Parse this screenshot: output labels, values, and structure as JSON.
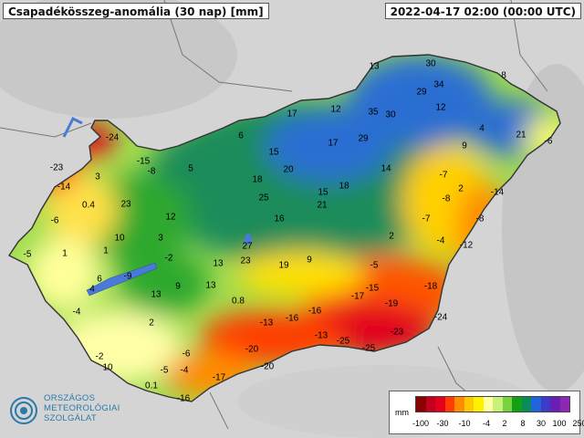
{
  "title": "Csapadékösszeg-anomália (30 nap) [mm]",
  "timestamp": "2022-04-17 02:00 (00:00 UTC)",
  "logo": {
    "line1": "ORSZÁGOS",
    "line2": "METEOROLÓGIAI",
    "line3": "SZOLGÁLAT"
  },
  "legend": {
    "unit": "mm",
    "colors": [
      "#8b0000",
      "#c4001e",
      "#e2001a",
      "#ff3c00",
      "#ff8c00",
      "#ffc800",
      "#fff200",
      "#ffffa0",
      "#c8f07a",
      "#78d23c",
      "#14a014",
      "#0a8c5a",
      "#1e64dc",
      "#3c3cc8",
      "#6a1eb4",
      "#8c28b4"
    ],
    "ticks": [
      "-100",
      "-30",
      "-10",
      "-4",
      "2",
      "8",
      "30",
      "100",
      "250"
    ]
  },
  "values": [
    {
      "v": "13"
    },
    {
      "v": "30"
    },
    {
      "v": "8"
    },
    {
      "v": "29"
    },
    {
      "v": "34"
    },
    {
      "v": "12"
    },
    {
      "v": "35"
    },
    {
      "v": "30"
    },
    {
      "v": "17"
    },
    {
      "v": "12"
    },
    {
      "v": "4"
    },
    {
      "v": "21"
    },
    {
      "v": "-6"
    },
    {
      "v": "9"
    },
    {
      "v": "-24"
    },
    {
      "v": "6"
    },
    {
      "v": "15"
    },
    {
      "v": "17"
    },
    {
      "v": "29"
    },
    {
      "v": "-23"
    },
    {
      "v": "-15"
    },
    {
      "v": "-8"
    },
    {
      "v": "5"
    },
    {
      "v": "20"
    },
    {
      "v": "14"
    },
    {
      "v": "-7"
    },
    {
      "v": "3"
    },
    {
      "v": "18"
    },
    {
      "v": "18"
    },
    {
      "v": "-14"
    },
    {
      "v": "0.4"
    },
    {
      "v": "23"
    },
    {
      "v": "25"
    },
    {
      "v": "15"
    },
    {
      "v": "2"
    },
    {
      "v": "-8"
    },
    {
      "v": "-14"
    },
    {
      "v": "-6"
    },
    {
      "v": "12"
    },
    {
      "v": "21"
    },
    {
      "v": "16"
    },
    {
      "v": "-7"
    },
    {
      "v": "-8"
    },
    {
      "v": "10"
    },
    {
      "v": "3"
    },
    {
      "v": "2"
    },
    {
      "v": "-4"
    },
    {
      "v": "-12"
    },
    {
      "v": "1"
    },
    {
      "v": "1"
    },
    {
      "v": "27"
    },
    {
      "v": "-2"
    },
    {
      "v": "13"
    },
    {
      "v": "23"
    },
    {
      "v": "19"
    },
    {
      "v": "9"
    },
    {
      "v": "-5"
    },
    {
      "v": "-5"
    },
    {
      "v": "6"
    },
    {
      "v": "-9"
    },
    {
      "v": "4"
    },
    {
      "v": "13"
    },
    {
      "v": "9"
    },
    {
      "v": "13"
    },
    {
      "v": "-17"
    },
    {
      "v": "-15"
    },
    {
      "v": "-18"
    },
    {
      "v": "0.8"
    },
    {
      "v": "-19"
    },
    {
      "v": "-4"
    },
    {
      "v": "-13"
    },
    {
      "v": "-16"
    },
    {
      "v": "-16"
    },
    {
      "v": "-24"
    },
    {
      "v": "2"
    },
    {
      "v": "-23"
    },
    {
      "v": "-13"
    },
    {
      "v": "-25"
    },
    {
      "v": "-25"
    },
    {
      "v": "-6"
    },
    {
      "v": "-20"
    },
    {
      "v": "-2"
    },
    {
      "v": "-5"
    },
    {
      "v": "-4"
    },
    {
      "v": "-20"
    },
    {
      "v": "10"
    },
    {
      "v": "-17"
    },
    {
      "v": "0.1"
    },
    {
      "v": "-16"
    }
  ]
}
